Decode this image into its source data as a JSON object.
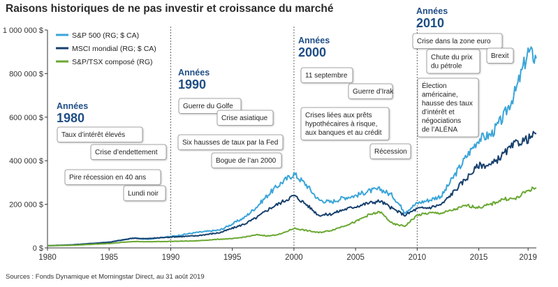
{
  "title": "Raisons historiques de ne pas investir et croissance du marché",
  "source": "Sources : Fonds Dynamique et Morningstar Direct, au 31 août 2019",
  "colors": {
    "sp500": "#3aa5d8",
    "msci": "#17406e",
    "tsx": "#6aa832",
    "era": "#1f4e85"
  },
  "chart_data": {
    "type": "line",
    "xlim": [
      1980,
      2019.67
    ],
    "ylim": [
      0,
      1000000
    ],
    "xticks": [
      "1980",
      "1985",
      "1990",
      "1995",
      "2000",
      "2005",
      "2010",
      "2015",
      "2019"
    ],
    "xtick_values": [
      1980,
      1985,
      1990,
      1995,
      2000,
      2005,
      2010,
      2015,
      2019
    ],
    "yticks": [
      "1 000 000 $",
      "800 000 $",
      "600 000 $",
      "400 000 $",
      "200 000 $",
      "0 $"
    ],
    "ytick_values": [
      1000000,
      800000,
      600000,
      400000,
      200000,
      0
    ],
    "series": [
      {
        "name": "S&P 500 (RG; $ CA)",
        "color": "#3aa5d8",
        "points": [
          [
            1980,
            10000
          ],
          [
            1982,
            14000
          ],
          [
            1985,
            26000
          ],
          [
            1987,
            45000
          ],
          [
            1988,
            40000
          ],
          [
            1990,
            52000
          ],
          [
            1992,
            70000
          ],
          [
            1994,
            82000
          ],
          [
            1995,
            110000
          ],
          [
            1996,
            140000
          ],
          [
            1997,
            190000
          ],
          [
            1998,
            250000
          ],
          [
            1999,
            300000
          ],
          [
            2000,
            340000
          ],
          [
            2001,
            290000
          ],
          [
            2002,
            220000
          ],
          [
            2003,
            210000
          ],
          [
            2004,
            230000
          ],
          [
            2005,
            240000
          ],
          [
            2006,
            260000
          ],
          [
            2007,
            270000
          ],
          [
            2008,
            240000
          ],
          [
            2009,
            165000
          ],
          [
            2010,
            205000
          ],
          [
            2011,
            220000
          ],
          [
            2012,
            240000
          ],
          [
            2013,
            330000
          ],
          [
            2014,
            420000
          ],
          [
            2015,
            500000
          ],
          [
            2016,
            520000
          ],
          [
            2017,
            600000
          ],
          [
            2018,
            720000
          ],
          [
            2019,
            900000
          ],
          [
            2019.67,
            870000
          ]
        ]
      },
      {
        "name": "MSCI mondial (RG; $ CA)",
        "color": "#17406e",
        "points": [
          [
            1980,
            10000
          ],
          [
            1982,
            14000
          ],
          [
            1985,
            26000
          ],
          [
            1987,
            45000
          ],
          [
            1988,
            42000
          ],
          [
            1990,
            50000
          ],
          [
            1992,
            55000
          ],
          [
            1994,
            70000
          ],
          [
            1995,
            90000
          ],
          [
            1996,
            110000
          ],
          [
            1997,
            140000
          ],
          [
            1998,
            180000
          ],
          [
            1999,
            210000
          ],
          [
            2000,
            240000
          ],
          [
            2001,
            200000
          ],
          [
            2002,
            150000
          ],
          [
            2003,
            155000
          ],
          [
            2004,
            175000
          ],
          [
            2005,
            190000
          ],
          [
            2006,
            205000
          ],
          [
            2007,
            215000
          ],
          [
            2008,
            180000
          ],
          [
            2009,
            150000
          ],
          [
            2010,
            180000
          ],
          [
            2011,
            185000
          ],
          [
            2012,
            200000
          ],
          [
            2013,
            260000
          ],
          [
            2014,
            320000
          ],
          [
            2015,
            380000
          ],
          [
            2016,
            380000
          ],
          [
            2017,
            430000
          ],
          [
            2018,
            480000
          ],
          [
            2019,
            500000
          ],
          [
            2019.67,
            525000
          ]
        ]
      },
      {
        "name": "S&P/TSX composé (RG)",
        "color": "#6aa832",
        "points": [
          [
            1980,
            10000
          ],
          [
            1982,
            12000
          ],
          [
            1985,
            20000
          ],
          [
            1987,
            30000
          ],
          [
            1988,
            28000
          ],
          [
            1990,
            30000
          ],
          [
            1992,
            32000
          ],
          [
            1994,
            40000
          ],
          [
            1995,
            42000
          ],
          [
            1996,
            50000
          ],
          [
            1997,
            60000
          ],
          [
            1998,
            55000
          ],
          [
            1999,
            65000
          ],
          [
            2000,
            90000
          ],
          [
            2001,
            80000
          ],
          [
            2002,
            70000
          ],
          [
            2003,
            80000
          ],
          [
            2004,
            100000
          ],
          [
            2005,
            120000
          ],
          [
            2006,
            150000
          ],
          [
            2007,
            165000
          ],
          [
            2008,
            110000
          ],
          [
            2009,
            100000
          ],
          [
            2010,
            150000
          ],
          [
            2011,
            160000
          ],
          [
            2012,
            160000
          ],
          [
            2013,
            175000
          ],
          [
            2014,
            195000
          ],
          [
            2015,
            185000
          ],
          [
            2016,
            200000
          ],
          [
            2017,
            225000
          ],
          [
            2018,
            225000
          ],
          [
            2019,
            265000
          ],
          [
            2019.67,
            275000
          ]
        ]
      }
    ],
    "legend": "top-left",
    "era_lines": [
      1990,
      2000,
      2010
    ],
    "eras": [
      {
        "line1": "Années",
        "line2": "1980"
      },
      {
        "line1": "Années",
        "line2": "1990"
      },
      {
        "line1": "Années",
        "line2": "2000"
      },
      {
        "line1": "Années",
        "line2": "2010"
      }
    ],
    "events": [
      {
        "lines": [
          "Taux d’intérêt élevés"
        ]
      },
      {
        "lines": [
          "Crise d’endettement"
        ]
      },
      {
        "lines": [
          "Pire récession en 40 ans"
        ]
      },
      {
        "lines": [
          "Lundi noir"
        ]
      },
      {
        "lines": [
          "Guerre du Golfe"
        ]
      },
      {
        "lines": [
          "Crise asiatique"
        ]
      },
      {
        "lines": [
          "Six hausses de taux par la Fed"
        ]
      },
      {
        "lines": [
          "Bogue de l’an 2000"
        ]
      },
      {
        "lines": [
          "11 septembre"
        ]
      },
      {
        "lines": [
          "Guerre d’Irak"
        ]
      },
      {
        "lines": [
          "Crises liées aux prêts",
          "hypothécaires à risque,",
          "aux banques et au crédit"
        ]
      },
      {
        "lines": [
          "Récession"
        ]
      },
      {
        "lines": [
          "Crise dans la zone euro"
        ]
      },
      {
        "lines": [
          "Chute du prix",
          "du pétrole"
        ]
      },
      {
        "lines": [
          "Brexit"
        ]
      },
      {
        "lines": [
          "Élection",
          "américaine,",
          "hausse des taux",
          "d’intérêt et",
          "négociations",
          "de l’ALÉNA"
        ]
      }
    ]
  }
}
